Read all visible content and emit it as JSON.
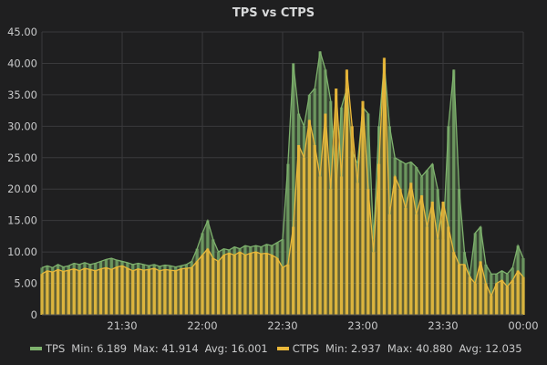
{
  "chart_data": {
    "type": "bar",
    "title": "TPS vs CTPS",
    "xlabel": "",
    "ylabel": "",
    "ylim": [
      0,
      45
    ],
    "yticks": [
      "0",
      "5.00",
      "10.00",
      "15.00",
      "20.00",
      "25.00",
      "30.00",
      "35.00",
      "40.00",
      "45.00"
    ],
    "xticks": [
      "21:30",
      "22:00",
      "22:30",
      "23:00",
      "23:30",
      "00:00"
    ],
    "x_start": "21:00",
    "x_end": "00:00",
    "x_step_minutes": 2,
    "grid": true,
    "legend_position": "bottom",
    "series": [
      {
        "name": "TPS",
        "color": "#7eb26d",
        "min_label": "Min: 6.189",
        "max_label": "Max: 41.914",
        "avg_label": "Avg: 16.001",
        "values": [
          7.5,
          7.8,
          7.5,
          8.0,
          7.6,
          7.8,
          8.2,
          8.0,
          8.3,
          8.0,
          8.2,
          8.5,
          8.8,
          9.0,
          8.7,
          8.5,
          8.3,
          8.0,
          8.2,
          8.0,
          7.8,
          8.0,
          7.7,
          7.9,
          7.8,
          7.6,
          7.8,
          8.0,
          8.5,
          10.5,
          13.0,
          15.0,
          12.0,
          10.0,
          10.5,
          10.3,
          10.8,
          10.5,
          11.0,
          10.8,
          11.0,
          10.8,
          11.2,
          11.0,
          11.5,
          12.0,
          24.0,
          40.0,
          32.0,
          30.0,
          35.0,
          36.0,
          41.9,
          39.0,
          34.0,
          20.0,
          33.0,
          36.0,
          26.0,
          24.0,
          33.0,
          32.0,
          12.0,
          30.0,
          40.0,
          30.0,
          25.0,
          24.5,
          24.0,
          24.3,
          23.5,
          22.0,
          23.0,
          24.0,
          20.0,
          12.0,
          30.0,
          39.0,
          20.0,
          10.0,
          6.2,
          13.0,
          14.0,
          8.0,
          6.5,
          6.5,
          7.0,
          6.5,
          7.5,
          11.0,
          9.0
        ]
      },
      {
        "name": "CTPS",
        "color": "#eab839",
        "min_label": "Min: 2.937",
        "max_label": "Max: 40.880",
        "avg_label": "Avg: 12.035",
        "values": [
          6.5,
          7.0,
          6.8,
          7.2,
          6.9,
          7.1,
          7.3,
          7.0,
          7.4,
          7.2,
          7.0,
          7.3,
          7.5,
          7.2,
          7.6,
          7.8,
          7.4,
          7.0,
          7.3,
          7.1,
          7.2,
          7.4,
          7.0,
          7.2,
          7.1,
          7.0,
          7.3,
          7.4,
          7.5,
          8.5,
          9.5,
          10.5,
          9.0,
          8.5,
          9.5,
          9.8,
          9.5,
          10.0,
          9.5,
          9.8,
          10.0,
          9.7,
          9.8,
          9.5,
          9.0,
          7.5,
          8.0,
          14.0,
          27.0,
          25.0,
          31.0,
          27.0,
          22.0,
          32.0,
          20.0,
          36.0,
          22.0,
          39.0,
          30.0,
          21.0,
          34.0,
          20.0,
          10.0,
          24.0,
          40.88,
          16.0,
          22.0,
          20.0,
          17.0,
          21.0,
          16.0,
          19.0,
          14.0,
          18.0,
          12.0,
          18.0,
          14.0,
          10.0,
          8.0,
          8.0,
          6.0,
          5.0,
          8.5,
          5.0,
          3.0,
          5.0,
          5.5,
          4.5,
          5.5,
          7.0,
          6.0
        ]
      }
    ]
  }
}
